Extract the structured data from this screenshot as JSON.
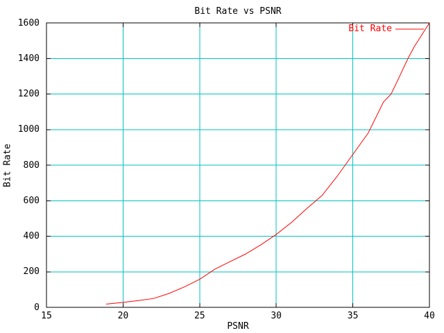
{
  "colors": {
    "line": "#ff0000",
    "grid": "#00c0c0",
    "axis": "#000000",
    "text": "#000000",
    "background": "#ffffff"
  },
  "legend": {
    "position": "top-right-inside",
    "entries": [
      {
        "label": "Bit Rate",
        "color": "#ff0000",
        "sample": "line"
      }
    ]
  },
  "chart_data": {
    "type": "line",
    "title": "Bit Rate vs PSNR",
    "xlabel": "PSNR",
    "ylabel": "Bit Rate",
    "xlim": [
      15,
      40
    ],
    "ylim": [
      0,
      1600
    ],
    "x_ticks": [
      15,
      20,
      25,
      30,
      35,
      40
    ],
    "y_ticks": [
      0,
      200,
      400,
      600,
      800,
      1000,
      1200,
      1400,
      1600
    ],
    "grid": true,
    "series": [
      {
        "name": "Bit Rate",
        "color": "#ff0000",
        "x": [
          18.9,
          20,
          21,
          22,
          23,
          24,
          25,
          26,
          27,
          28,
          29,
          30,
          31,
          32,
          33,
          34,
          35,
          36,
          37,
          37.5,
          38,
          38.6,
          39,
          40
        ],
        "y": [
          18,
          28,
          38,
          50,
          78,
          115,
          158,
          215,
          258,
          300,
          352,
          410,
          478,
          556,
          630,
          740,
          860,
          980,
          1155,
          1200,
          1290,
          1400,
          1465,
          1600
        ]
      }
    ]
  }
}
